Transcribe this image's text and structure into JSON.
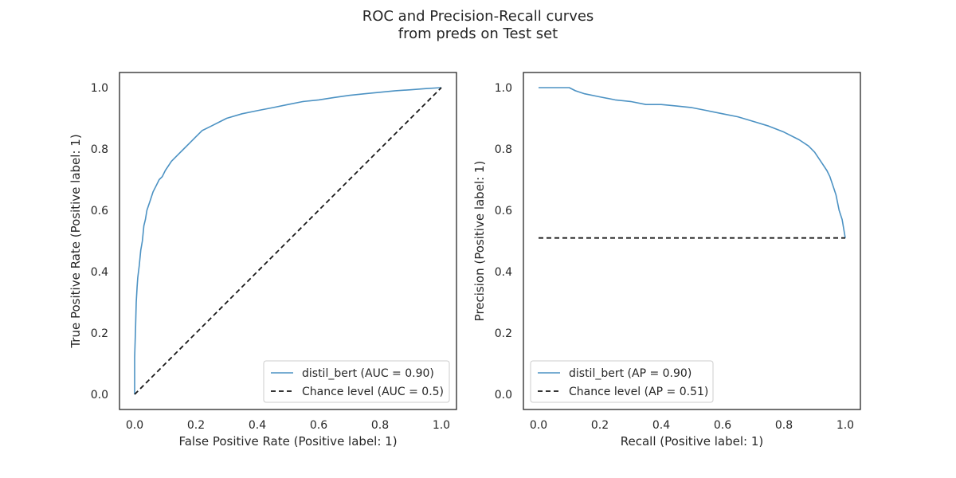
{
  "figure": {
    "title_line1": "ROC and Precision-Recall curves",
    "title_line2": "from preds on Test set"
  },
  "colors": {
    "curve": "#4c92c3",
    "chance": "#1a1a1a",
    "axes": "#262626"
  },
  "chart_data": [
    {
      "type": "line",
      "xlabel": "False Positive Rate (Positive label: 1)",
      "ylabel": "True Positive Rate (Positive label: 1)",
      "xlim": [
        0.0,
        1.0
      ],
      "ylim": [
        0.0,
        1.0
      ],
      "xticks": [
        "0.0",
        "0.2",
        "0.4",
        "0.6",
        "0.8",
        "1.0"
      ],
      "yticks": [
        "0.0",
        "0.2",
        "0.4",
        "0.6",
        "0.8",
        "1.0"
      ],
      "grid": false,
      "legend_position": "lower-right",
      "series": [
        {
          "name": "distil_bert (AUC = 0.90)",
          "style": "solid",
          "color": "#4c92c3",
          "x": [
            0.0,
            0.0,
            0.003,
            0.005,
            0.008,
            0.01,
            0.015,
            0.02,
            0.025,
            0.03,
            0.035,
            0.04,
            0.05,
            0.06,
            0.07,
            0.08,
            0.09,
            0.1,
            0.12,
            0.14,
            0.16,
            0.18,
            0.2,
            0.22,
            0.25,
            0.28,
            0.3,
            0.35,
            0.4,
            0.45,
            0.5,
            0.55,
            0.6,
            0.65,
            0.7,
            0.75,
            0.8,
            0.85,
            0.9,
            0.95,
            1.0
          ],
          "y": [
            0.0,
            0.12,
            0.22,
            0.3,
            0.35,
            0.38,
            0.42,
            0.47,
            0.5,
            0.55,
            0.57,
            0.6,
            0.63,
            0.66,
            0.68,
            0.7,
            0.71,
            0.73,
            0.76,
            0.78,
            0.8,
            0.82,
            0.84,
            0.86,
            0.875,
            0.89,
            0.9,
            0.915,
            0.925,
            0.935,
            0.945,
            0.955,
            0.96,
            0.968,
            0.975,
            0.98,
            0.985,
            0.99,
            0.993,
            0.997,
            1.0
          ]
        },
        {
          "name": "Chance level (AUC = 0.5)",
          "style": "dashed",
          "color": "#1a1a1a",
          "x": [
            0.0,
            1.0
          ],
          "y": [
            0.0,
            1.0
          ]
        }
      ]
    },
    {
      "type": "line",
      "xlabel": "Recall (Positive label: 1)",
      "ylabel": "Precision (Positive label: 1)",
      "xlim": [
        0.0,
        1.0
      ],
      "ylim": [
        0.0,
        1.0
      ],
      "xticks": [
        "0.0",
        "0.2",
        "0.4",
        "0.6",
        "0.8",
        "1.0"
      ],
      "yticks": [
        "0.0",
        "0.2",
        "0.4",
        "0.6",
        "0.8",
        "1.0"
      ],
      "grid": false,
      "legend_position": "lower-left",
      "series": [
        {
          "name": "distil_bert (AP = 0.90)",
          "style": "solid",
          "color": "#4c92c3",
          "x": [
            0.0,
            0.05,
            0.1,
            0.12,
            0.15,
            0.2,
            0.25,
            0.3,
            0.35,
            0.4,
            0.45,
            0.5,
            0.55,
            0.6,
            0.65,
            0.7,
            0.75,
            0.8,
            0.85,
            0.88,
            0.9,
            0.92,
            0.94,
            0.95,
            0.96,
            0.97,
            0.98,
            0.99,
            1.0
          ],
          "y": [
            1.0,
            1.0,
            1.0,
            0.99,
            0.98,
            0.97,
            0.96,
            0.955,
            0.945,
            0.945,
            0.94,
            0.935,
            0.925,
            0.915,
            0.905,
            0.89,
            0.875,
            0.855,
            0.83,
            0.81,
            0.79,
            0.76,
            0.73,
            0.71,
            0.68,
            0.65,
            0.6,
            0.57,
            0.51
          ]
        },
        {
          "name": "Chance level (AP = 0.51)",
          "style": "dashed",
          "color": "#1a1a1a",
          "x": [
            0.0,
            1.0
          ],
          "y": [
            0.51,
            0.51
          ]
        }
      ]
    }
  ]
}
